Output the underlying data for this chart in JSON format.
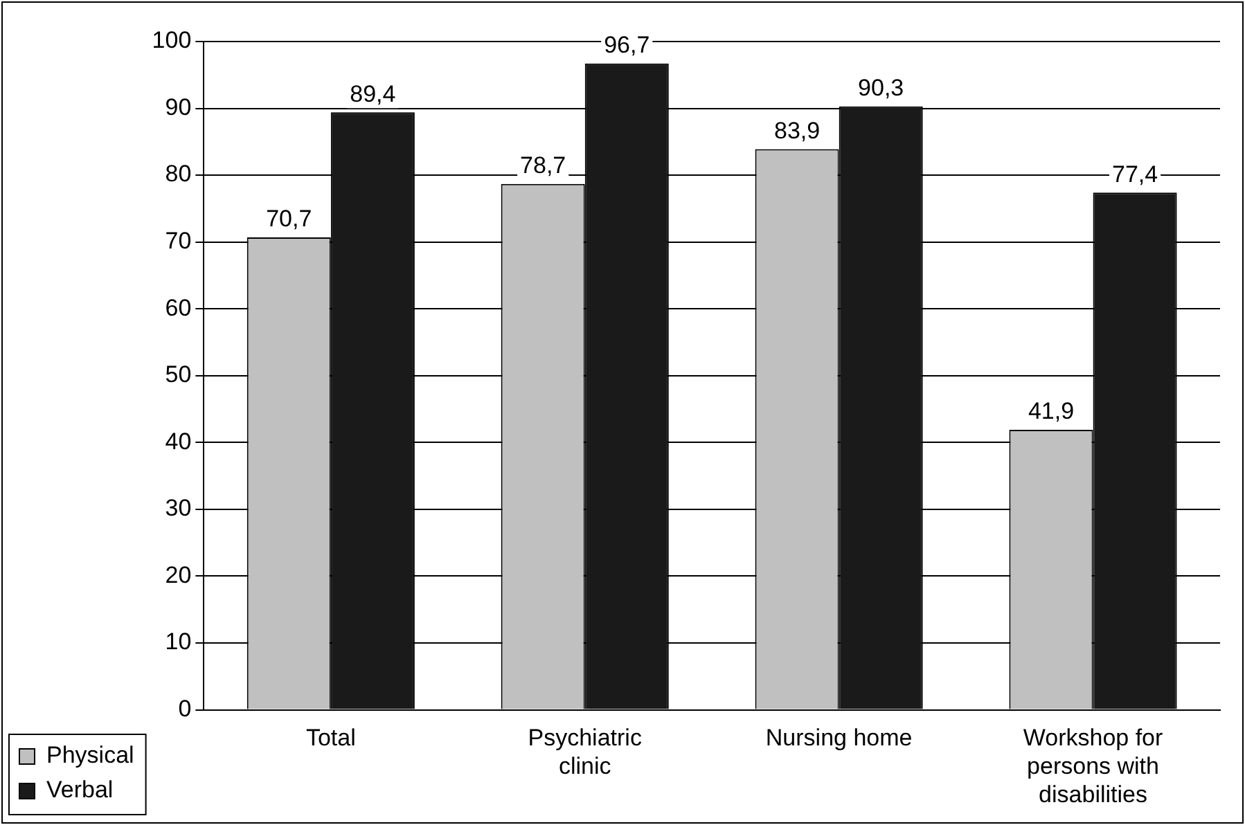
{
  "chart_data": {
    "type": "bar",
    "categories": [
      "Total",
      "Psychiatric clinic",
      "Nursing home",
      "Workshop for persons with disabilities"
    ],
    "series": [
      {
        "name": "Physical",
        "color": "#c0c0c0",
        "values": [
          70.7,
          78.7,
          83.9,
          41.9
        ],
        "value_labels": [
          "70,7",
          "78,7",
          "83,9",
          "41,9"
        ]
      },
      {
        "name": "Verbal",
        "color": "#1a1a1a",
        "values": [
          89.4,
          96.7,
          90.3,
          77.4
        ],
        "value_labels": [
          "89,4",
          "96,7",
          "90,3",
          "77,4"
        ]
      }
    ],
    "ylim": [
      0,
      100
    ],
    "yticks": [
      0,
      10,
      20,
      30,
      40,
      50,
      60,
      70,
      80,
      90,
      100
    ],
    "grid": "y",
    "legend": "bottom left"
  }
}
